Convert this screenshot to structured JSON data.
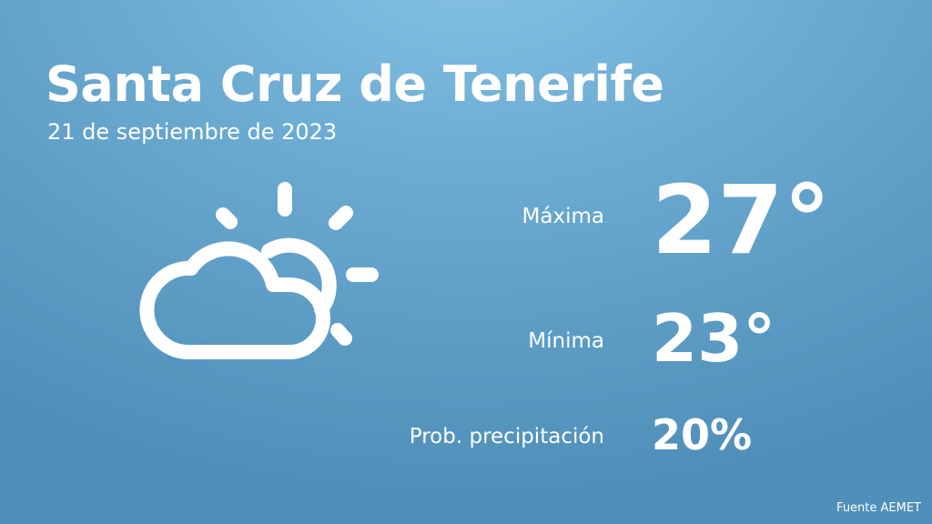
{
  "header": {
    "city": "Santa Cruz de Tenerife",
    "date": "21 de septiembre de 2023"
  },
  "forecast": {
    "icon": "partly-cloudy-icon",
    "max_label": "Máxima",
    "max_value": "27°",
    "min_label": "Mínima",
    "min_value": "23°",
    "precip_label": "Prob. precipitación",
    "precip_value": "20%"
  },
  "footer": {
    "source": "Fuente AEMET"
  },
  "colors": {
    "background_top": "#86c3e6",
    "background_bottom": "#4f8fb9",
    "text": "#ffffff"
  }
}
